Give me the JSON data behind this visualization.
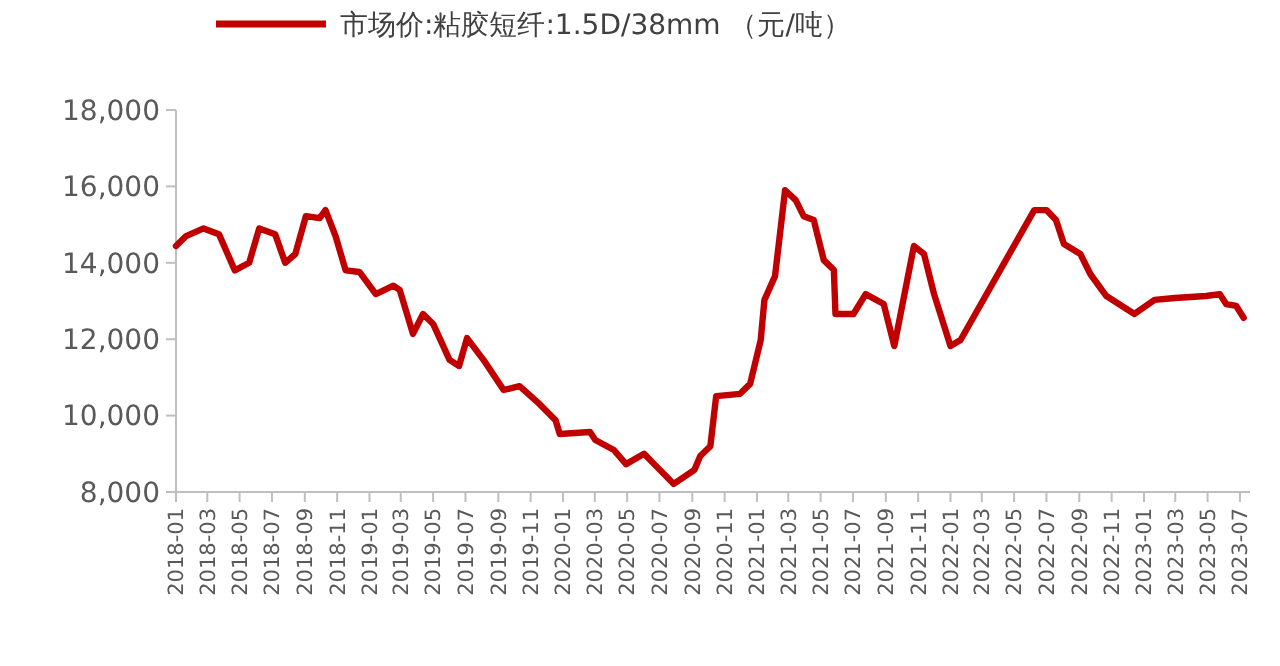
{
  "chart_data": {
    "type": "line",
    "legend": "top",
    "ylim": [
      8000,
      18000
    ],
    "yticks": [
      {
        "value": 8000,
        "label": "8,000"
      },
      {
        "value": 10000,
        "label": "10,000"
      },
      {
        "value": 12000,
        "label": "12,000"
      },
      {
        "value": 14000,
        "label": "14,000"
      },
      {
        "value": 16000,
        "label": "16,000"
      },
      {
        "value": 18000,
        "label": "18,000"
      }
    ],
    "xlim": [
      "2018-01-01",
      "2023-07-20"
    ],
    "xticks": [
      "2018-01",
      "2018-03",
      "2018-05",
      "2018-07",
      "2018-09",
      "2018-11",
      "2019-01",
      "2019-03",
      "2019-05",
      "2019-07",
      "2019-09",
      "2019-11",
      "2020-01",
      "2020-03",
      "2020-05",
      "2020-07",
      "2020-09",
      "2020-11",
      "2021-01",
      "2021-03",
      "2021-05",
      "2021-07",
      "2021-09",
      "2021-11",
      "2022-01",
      "2022-03",
      "2022-05",
      "2022-07",
      "2022-09",
      "2022-11",
      "2023-01",
      "2023-03",
      "2023-05",
      "2023-07"
    ],
    "grid": false,
    "series": [
      {
        "name": "市场价:粘胶短纤:1.5D/38mm （元/吨）",
        "color": "#c00000",
        "x": [
          "2018-01-01",
          "2018-01-20",
          "2018-02-22",
          "2018-03-23",
          "2018-04-22",
          "2018-05-19",
          "2018-06-07",
          "2018-07-07",
          "2018-07-26",
          "2018-08-14",
          "2018-09-03",
          "2018-09-29",
          "2018-10-10",
          "2018-10-29",
          "2018-11-17",
          "2018-12-13",
          "2019-01-13",
          "2019-02-15",
          "2019-02-27",
          "2019-03-24",
          "2019-04-12",
          "2019-05-01",
          "2019-06-01",
          "2019-06-19",
          "2019-07-04",
          "2019-08-04",
          "2019-09-11",
          "2019-10-11",
          "2019-11-18",
          "2019-12-18",
          "2019-12-26",
          "2020-02-21",
          "2020-03-02",
          "2020-04-06",
          "2020-04-29",
          "2020-06-02",
          "2020-06-21",
          "2020-07-28",
          "2020-09-05",
          "2020-09-16",
          "2020-10-05",
          "2020-10-16",
          "2020-11-30",
          "2020-12-19",
          "2021-01-08",
          "2021-01-15",
          "2021-02-04",
          "2021-02-23",
          "2021-03-15",
          "2021-03-30",
          "2021-04-18",
          "2021-05-07",
          "2021-05-26",
          "2021-05-29",
          "2021-07-02",
          "2021-07-25",
          "2021-08-28",
          "2021-09-17",
          "2021-10-24",
          "2021-11-12",
          "2021-12-01",
          "2022-01-01",
          "2022-01-20",
          "2022-06-08",
          "2022-07-01",
          "2022-07-19",
          "2022-08-03",
          "2022-09-03",
          "2022-09-22",
          "2022-10-22",
          "2022-12-14",
          "2023-01-21",
          "2023-02-28",
          "2023-04-28",
          "2023-05-24",
          "2023-06-05",
          "2023-06-24",
          "2023-07-08"
        ],
        "values": [
          14440,
          14700,
          14900,
          14750,
          13800,
          14000,
          14900,
          14750,
          14000,
          14230,
          15220,
          15170,
          15380,
          14700,
          13800,
          13760,
          13180,
          13400,
          13290,
          12140,
          12660,
          12400,
          11460,
          11300,
          12030,
          11460,
          10670,
          10770,
          10300,
          9880,
          9520,
          9570,
          9360,
          9100,
          8730,
          9000,
          8730,
          8210,
          8580,
          8940,
          9200,
          10510,
          10570,
          10830,
          11980,
          13030,
          13650,
          15900,
          15640,
          15220,
          15120,
          14070,
          13810,
          12660,
          12660,
          13180,
          12920,
          11820,
          14440,
          14230,
          13180,
          11820,
          11980,
          15380,
          15380,
          15120,
          14490,
          14230,
          13700,
          13130,
          12660,
          13030,
          13080,
          13130,
          13180,
          12920,
          12870,
          12560
        ]
      }
    ]
  }
}
